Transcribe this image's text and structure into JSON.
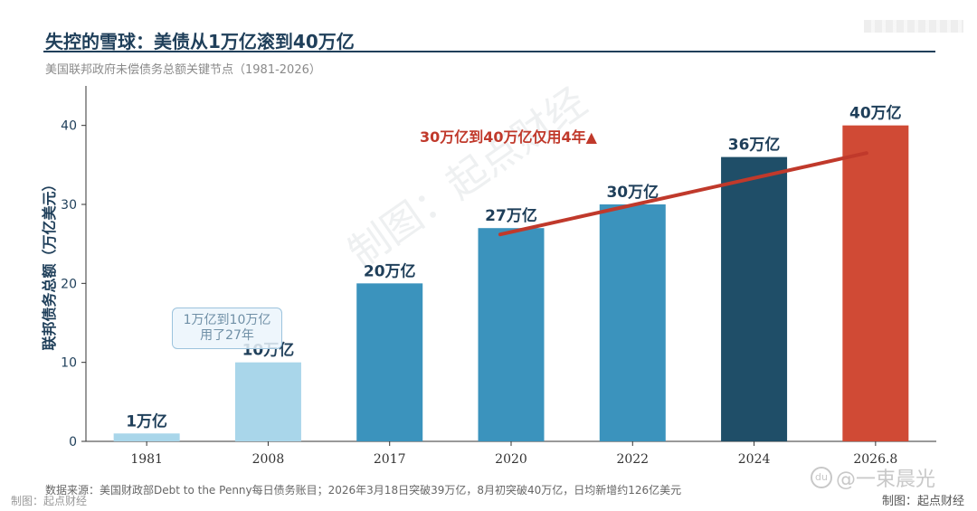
{
  "header": {
    "title": "失控的雪球：美债从1万亿滚到40万亿",
    "subtitle": "美国联邦政府未偿债务总额关键节点（1981-2026）"
  },
  "chart_data": {
    "type": "bar",
    "title": "失控的雪球：美债从1万亿滚到40万亿",
    "ylabel": "联邦债务总额（万亿美元）",
    "xlabel": "",
    "ylim": [
      0,
      45
    ],
    "yticks": [
      0,
      10,
      20,
      30,
      40
    ],
    "categories": [
      "1981",
      "2008",
      "2017",
      "2020",
      "2022",
      "2024",
      "2026.8"
    ],
    "values": [
      1,
      10,
      20,
      27,
      30,
      36,
      40
    ],
    "data_labels": [
      "1万亿",
      "10万亿",
      "20万亿",
      "27万亿",
      "30万亿",
      "36万亿",
      "40万亿"
    ],
    "bar_colors": [
      "#a9d6ea",
      "#a9d6ea",
      "#3b93bd",
      "#3b93bd",
      "#3b93bd",
      "#1f4e68",
      "#d04a35"
    ],
    "trend_line": {
      "from": {
        "x": "2020",
        "y": 26.2
      },
      "to": {
        "x": "2026.8",
        "y": 36.5
      },
      "color": "#c0392b"
    },
    "annotations": [
      "1万亿到10万亿\n用了27年",
      "30万亿到40万亿仅用4年▲"
    ],
    "grid": false
  },
  "annotations": {
    "callout_line1": "1万亿到10万亿",
    "callout_line2": "用了27年",
    "red_note": "30万亿到40万亿仅用4年▲"
  },
  "footer": {
    "source": "数据来源：美国财政部Debt to the Penny每日债务账目；2026年3月18日突破39万亿，8月初突破40万亿，日均新增约126亿美元",
    "credit_left": "制图：起点财经",
    "credit_right": "制图：起点财经",
    "weibo_handle": "@一束晨光",
    "watermark": "制图：起点财经"
  }
}
